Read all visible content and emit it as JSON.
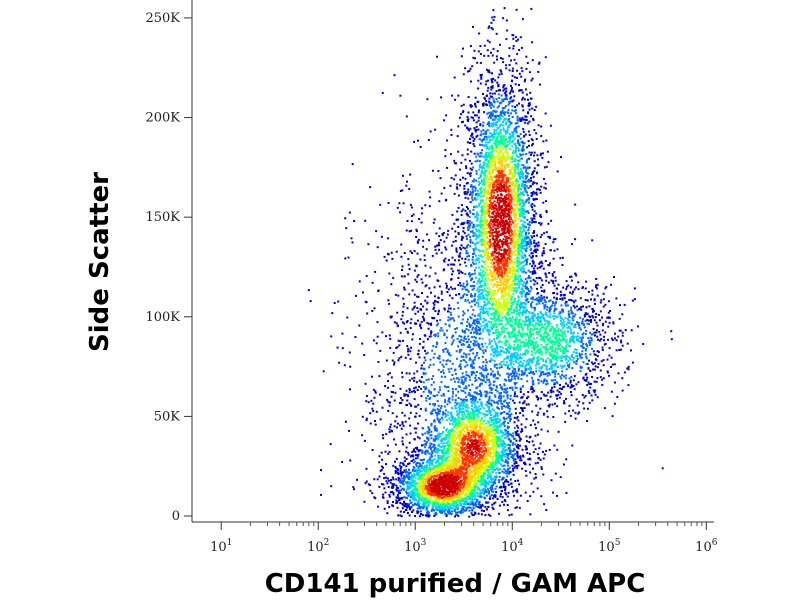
{
  "chart_data": {
    "type": "scatter",
    "subtype": "flow-cytometry-density-dot-plot",
    "xlabel": "CD141 purified / GAM APC",
    "ylabel": "Side Scatter",
    "x_scale": "log",
    "xlim": [
      5,
      1200000
    ],
    "ylim": [
      -2000,
      257000
    ],
    "x_ticks": [
      {
        "value": 10,
        "base": "10",
        "exp": "1"
      },
      {
        "value": 100,
        "base": "10",
        "exp": "2"
      },
      {
        "value": 1000,
        "base": "10",
        "exp": "3"
      },
      {
        "value": 10000,
        "base": "10",
        "exp": "4"
      },
      {
        "value": 100000,
        "base": "10",
        "exp": "5"
      },
      {
        "value": 1000000,
        "base": "10",
        "exp": "6"
      }
    ],
    "y_ticks": [
      {
        "value": 0,
        "label": "0"
      },
      {
        "value": 50000,
        "label": "50K"
      },
      {
        "value": 100000,
        "label": "100K"
      },
      {
        "value": 150000,
        "label": "150K"
      },
      {
        "value": 200000,
        "label": "200K"
      },
      {
        "value": 250000,
        "label": "250K"
      }
    ],
    "grid": false,
    "colormap": [
      "#0000cc",
      "#0066ff",
      "#00ccff",
      "#00ff99",
      "#ccff00",
      "#ffcc00",
      "#ff3300",
      "#cc0000"
    ],
    "populations": [
      {
        "x_center": 7500,
        "y_center": 150000,
        "x_spread_decades": 0.17,
        "y_spread": 35000,
        "density": 1.0
      },
      {
        "x_center": 25000,
        "y_center": 88000,
        "x_spread_decades": 0.3,
        "y_spread": 14000,
        "density": 0.55
      },
      {
        "x_center": 1800,
        "y_center": 15000,
        "x_spread_decades": 0.22,
        "y_spread": 7000,
        "density": 0.9
      },
      {
        "x_center": 4000,
        "y_center": 35000,
        "x_spread_decades": 0.22,
        "y_spread": 12000,
        "density": 0.75
      },
      {
        "x_center": 2500,
        "y_center": 70000,
        "x_spread_decades": 0.5,
        "y_spread": 50000,
        "density": 0.25
      }
    ]
  }
}
